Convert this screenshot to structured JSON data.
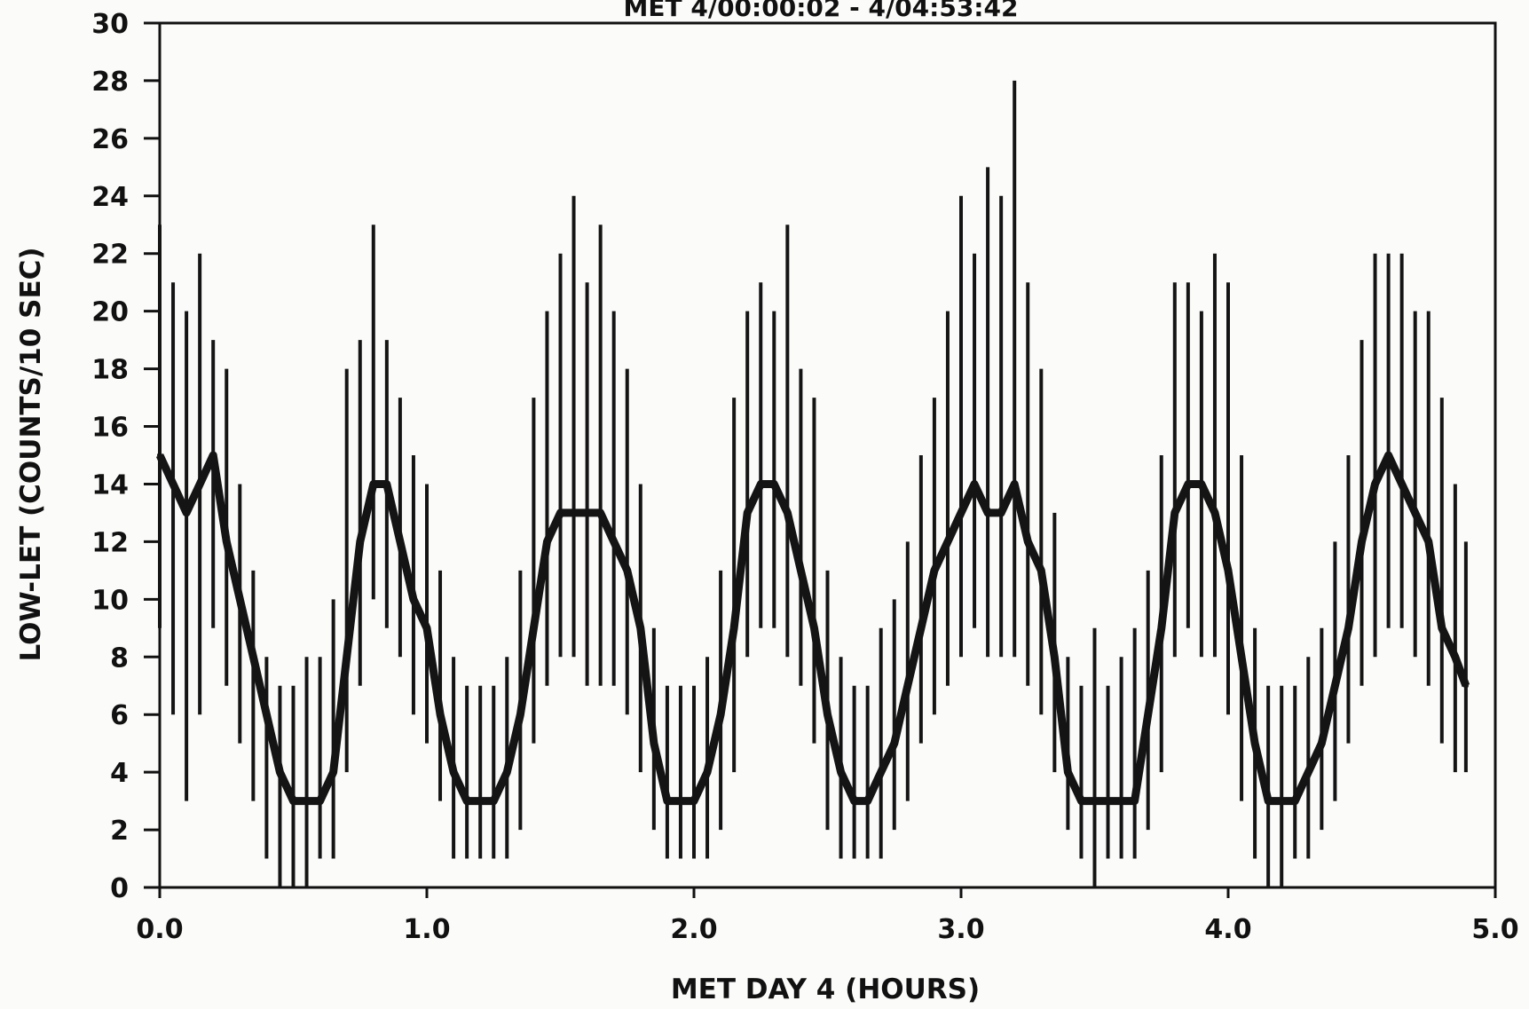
{
  "chart_data": {
    "type": "line",
    "title": "MET 4/00:00:02 - 4/04:53:42",
    "xlabel": "MET DAY 4 (HOURS)",
    "ylabel": "LOW-LET (COUNTS/10 SEC)",
    "xlim": [
      0.0,
      5.0
    ],
    "ylim": [
      0,
      30
    ],
    "x_ticks": [
      "0.0",
      "1.0",
      "2.0",
      "3.0",
      "4.0",
      "5.0"
    ],
    "y_ticks": [
      "0",
      "2",
      "4",
      "6",
      "8",
      "10",
      "12",
      "14",
      "16",
      "18",
      "20",
      "22",
      "24",
      "26",
      "28",
      "30"
    ],
    "grid": false,
    "line_color": "#141414",
    "series": [
      {
        "x": [
          0.0,
          0.05,
          0.1,
          0.15,
          0.2,
          0.25,
          0.3,
          0.35,
          0.4,
          0.45,
          0.5,
          0.55,
          0.6,
          0.65,
          0.7,
          0.75,
          0.8,
          0.85,
          0.9,
          0.95,
          1.0,
          1.05,
          1.1,
          1.15,
          1.2,
          1.25,
          1.3,
          1.35,
          1.4,
          1.45,
          1.5,
          1.55,
          1.6,
          1.65,
          1.7,
          1.75,
          1.8,
          1.85,
          1.9,
          1.95,
          2.0,
          2.05,
          2.1,
          2.15,
          2.2,
          2.25,
          2.3,
          2.35,
          2.4,
          2.45,
          2.5,
          2.55,
          2.6,
          2.65,
          2.7,
          2.75,
          2.8,
          2.85,
          2.9,
          2.95,
          3.0,
          3.05,
          3.1,
          3.15,
          3.2,
          3.25,
          3.3,
          3.35,
          3.4,
          3.45,
          3.5,
          3.55,
          3.6,
          3.65,
          3.7,
          3.75,
          3.8,
          3.85,
          3.9,
          3.95,
          4.0,
          4.05,
          4.1,
          4.15,
          4.2,
          4.25,
          4.3,
          4.35,
          4.4,
          4.45,
          4.5,
          4.55,
          4.6,
          4.65,
          4.7,
          4.75,
          4.8,
          4.85,
          4.89
        ],
        "values": [
          15,
          14,
          13,
          14,
          15,
          12,
          10,
          8,
          6,
          4,
          3,
          3,
          3,
          4,
          8,
          12,
          14,
          14,
          12,
          10,
          9,
          6,
          4,
          3,
          3,
          3,
          4,
          6,
          9,
          12,
          13,
          13,
          13,
          13,
          12,
          11,
          9,
          5,
          3,
          3,
          3,
          4,
          6,
          9,
          13,
          14,
          14,
          13,
          11,
          9,
          6,
          4,
          3,
          3,
          4,
          5,
          7,
          9,
          11,
          12,
          13,
          14,
          13,
          13,
          14,
          12,
          11,
          8,
          4,
          3,
          3,
          3,
          3,
          3,
          6,
          9,
          13,
          14,
          14,
          13,
          11,
          8,
          5,
          3,
          3,
          3,
          4,
          5,
          7,
          9,
          12,
          14,
          15,
          14,
          13,
          12,
          9,
          8,
          7
        ],
        "min": [
          9,
          6,
          3,
          6,
          9,
          7,
          5,
          3,
          1,
          0,
          0,
          0,
          1,
          1,
          4,
          7,
          10,
          9,
          8,
          6,
          5,
          3,
          1,
          1,
          1,
          1,
          1,
          2,
          5,
          7,
          8,
          8,
          7,
          7,
          7,
          6,
          4,
          2,
          1,
          1,
          1,
          1,
          2,
          4,
          8,
          9,
          9,
          8,
          7,
          5,
          2,
          1,
          1,
          1,
          1,
          2,
          3,
          5,
          6,
          7,
          8,
          9,
          8,
          8,
          8,
          7,
          6,
          4,
          2,
          1,
          0,
          1,
          1,
          1,
          2,
          4,
          8,
          9,
          8,
          8,
          6,
          3,
          1,
          0,
          0,
          1,
          1,
          2,
          3,
          5,
          7,
          8,
          9,
          9,
          8,
          7,
          5,
          4,
          4
        ],
        "max": [
          23,
          21,
          20,
          22,
          19,
          18,
          14,
          11,
          8,
          7,
          7,
          8,
          8,
          10,
          18,
          19,
          23,
          19,
          17,
          15,
          14,
          11,
          8,
          7,
          7,
          7,
          8,
          11,
          17,
          20,
          22,
          24,
          21,
          23,
          20,
          18,
          14,
          9,
          7,
          7,
          7,
          8,
          11,
          17,
          20,
          21,
          20,
          23,
          18,
          17,
          11,
          8,
          7,
          7,
          9,
          10,
          12,
          15,
          17,
          20,
          24,
          22,
          25,
          24,
          28,
          21,
          18,
          13,
          8,
          7,
          9,
          7,
          8,
          9,
          11,
          15,
          21,
          21,
          20,
          22,
          21,
          15,
          9,
          7,
          7,
          7,
          8,
          9,
          12,
          15,
          19,
          22,
          22,
          22,
          20,
          20,
          17,
          14,
          12
        ]
      }
    ]
  }
}
